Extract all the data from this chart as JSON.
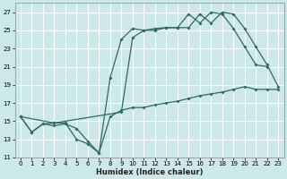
{
  "xlabel": "Humidex (Indice chaleur)",
  "bg_color": "#cce8e8",
  "grid_color": "#ffffff",
  "line_color": "#2e6b5e",
  "xlim": [
    -0.5,
    23.5
  ],
  "ylim": [
    11,
    28
  ],
  "yticks": [
    11,
    13,
    15,
    17,
    19,
    21,
    23,
    25,
    27
  ],
  "xticks": [
    0,
    1,
    2,
    3,
    4,
    5,
    6,
    7,
    8,
    9,
    10,
    11,
    12,
    13,
    14,
    15,
    16,
    17,
    18,
    19,
    20,
    21,
    22,
    23
  ],
  "line_min_x": [
    0,
    1,
    2,
    3,
    4,
    5,
    6,
    7,
    8,
    9,
    10,
    11,
    12,
    13,
    14,
    15,
    16,
    17,
    18,
    19,
    20,
    21,
    22,
    23
  ],
  "line_min_y": [
    15.5,
    13.8,
    14.7,
    14.5,
    14.7,
    14.2,
    12.8,
    11.5,
    15.5,
    16.2,
    16.5,
    16.5,
    16.8,
    17.0,
    17.2,
    17.5,
    17.8,
    18.0,
    18.2,
    18.5,
    18.8,
    18.5,
    18.5,
    18.5
  ],
  "line_max_x": [
    0,
    1,
    2,
    3,
    4,
    5,
    6,
    7,
    8,
    9,
    10,
    11,
    12,
    13,
    14,
    15,
    16,
    17,
    18,
    19,
    20,
    21,
    22
  ],
  "line_max_y": [
    15.5,
    13.8,
    14.7,
    14.8,
    14.8,
    13.0,
    12.5,
    11.5,
    19.8,
    24.0,
    25.2,
    25.0,
    25.2,
    25.3,
    25.3,
    26.8,
    25.8,
    27.0,
    26.8,
    25.2,
    23.2,
    21.2,
    21.0
  ],
  "line_mean_x": [
    0,
    3,
    9,
    10,
    11,
    12,
    13,
    14,
    15,
    16,
    17,
    18,
    19,
    20,
    21,
    22,
    23
  ],
  "line_mean_y": [
    15.5,
    14.8,
    16.0,
    24.2,
    25.0,
    25.0,
    25.3,
    25.3,
    25.3,
    26.8,
    25.8,
    27.0,
    26.8,
    25.2,
    23.2,
    21.2,
    18.8
  ]
}
